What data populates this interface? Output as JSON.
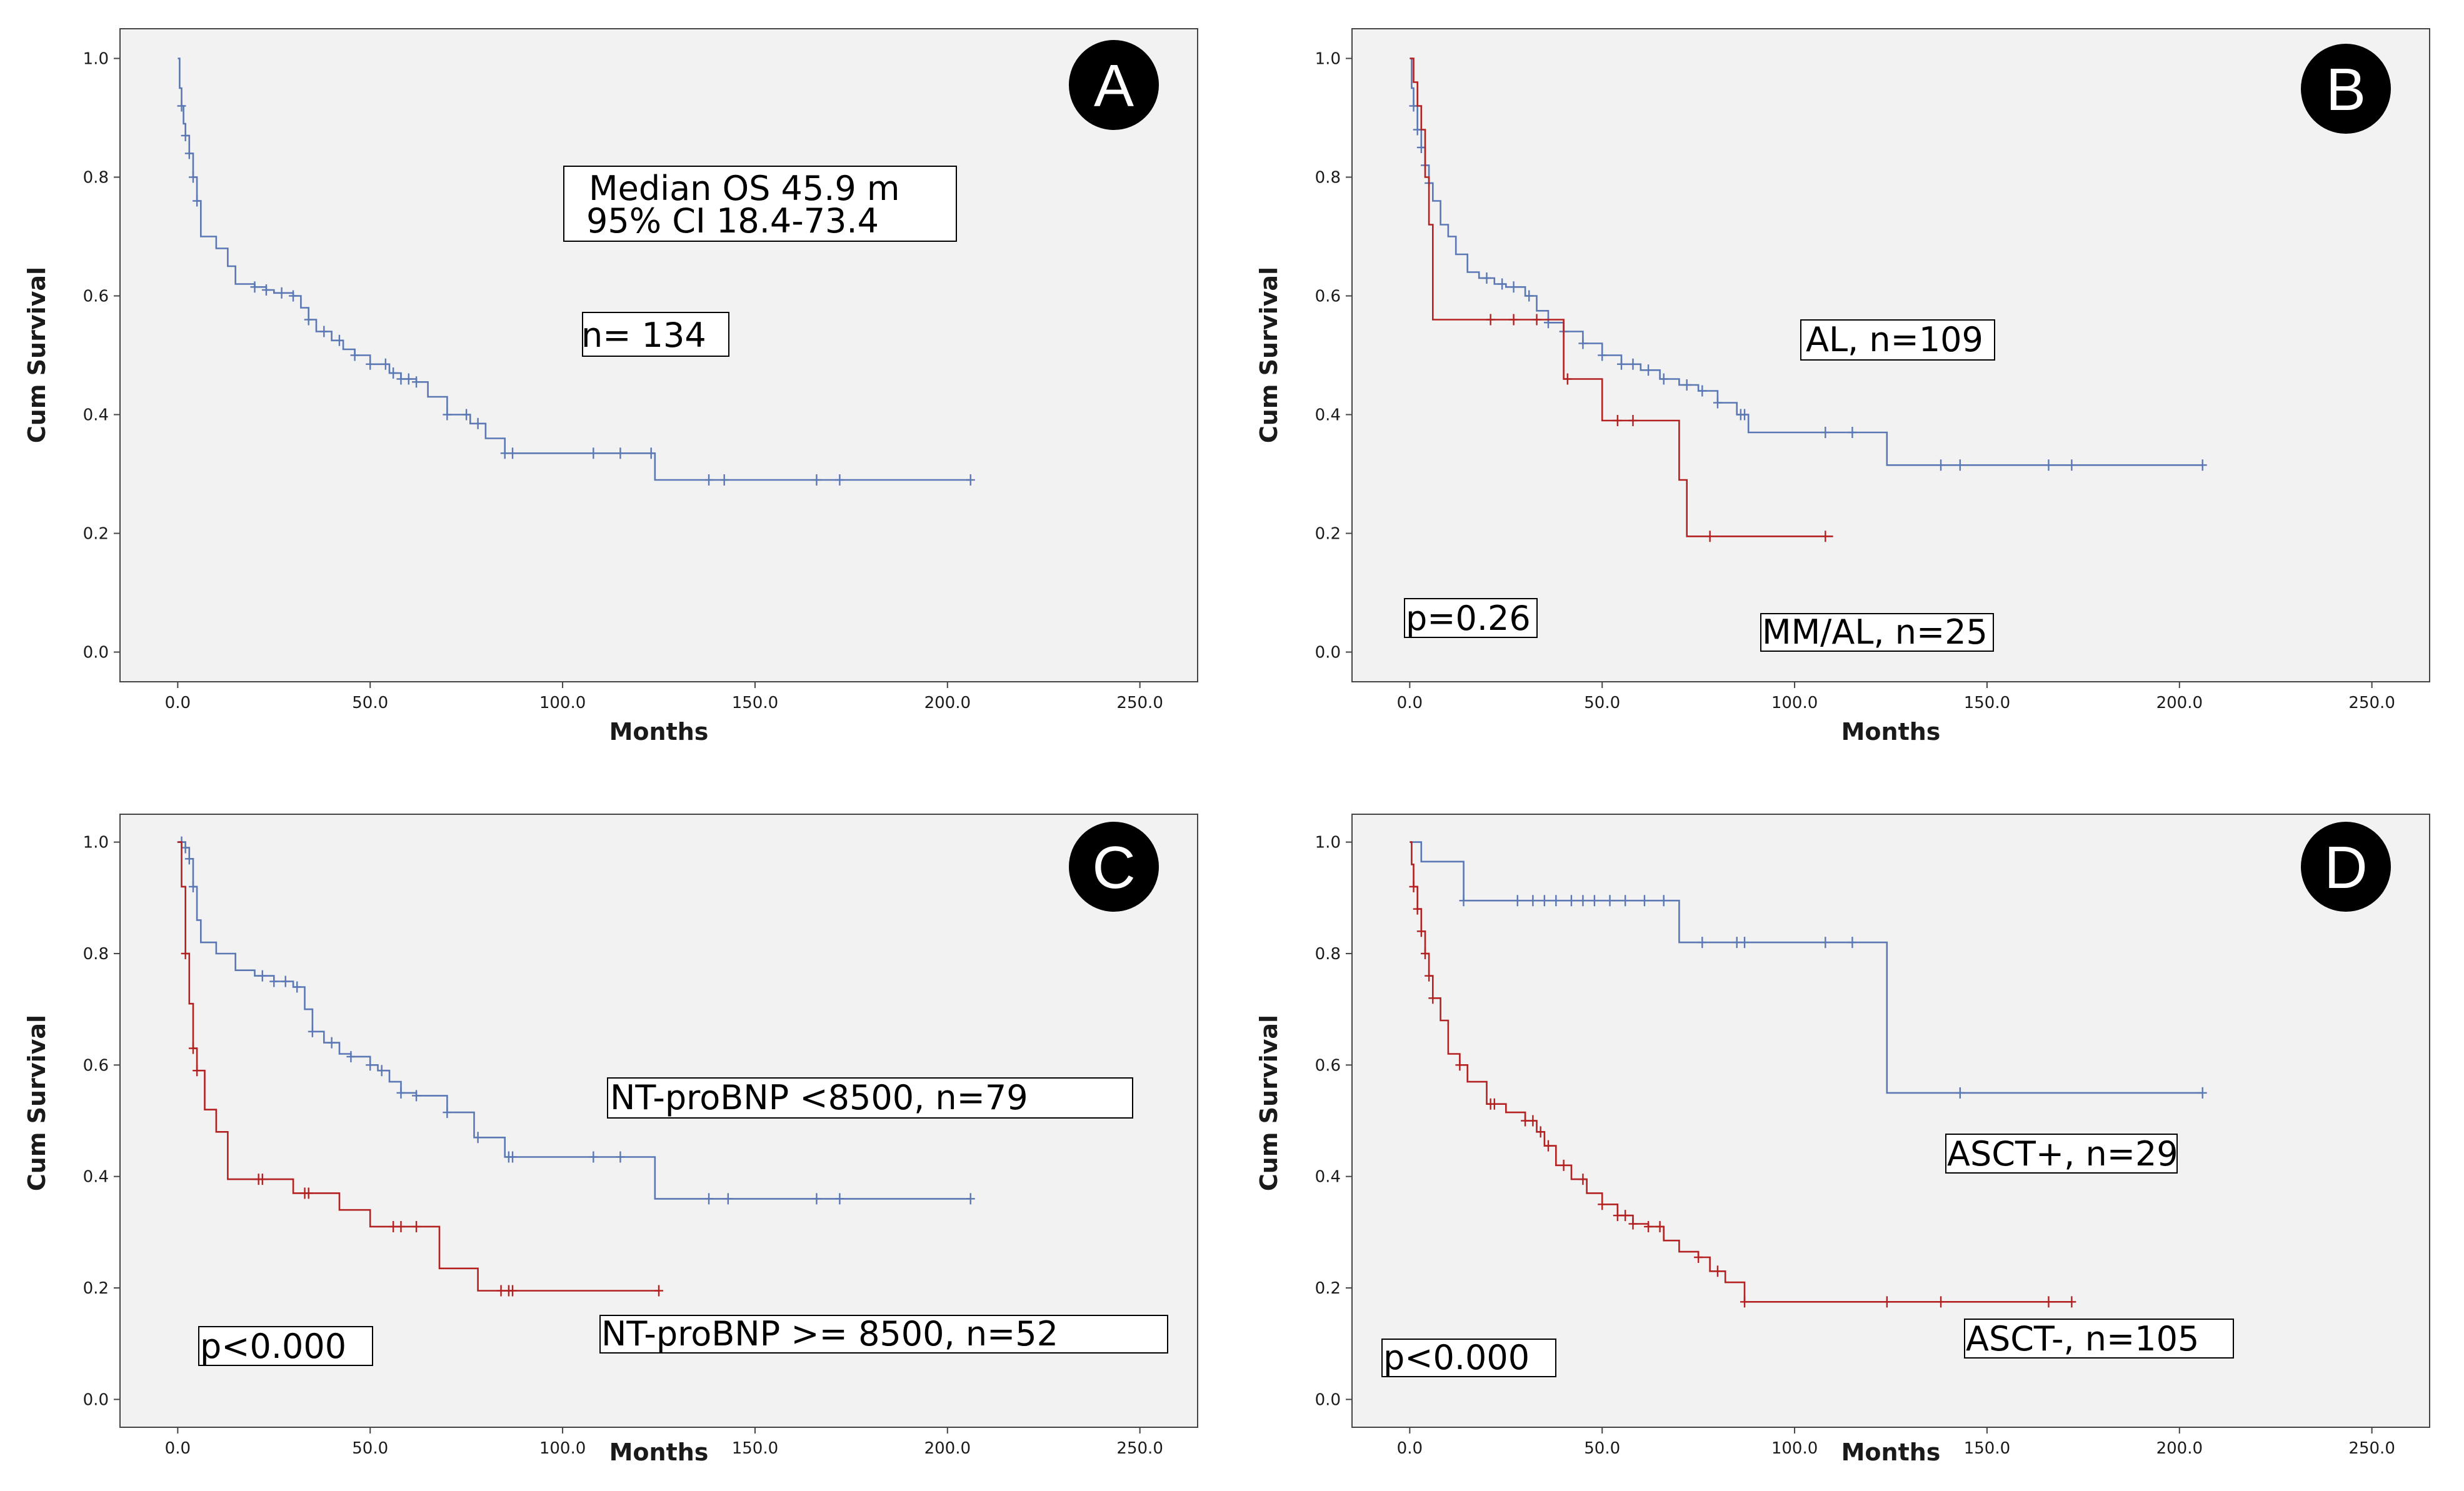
{
  "colors": {
    "blue": "#5b78b4",
    "red": "#b32121",
    "plot_bg": "#f2f2f2",
    "badge": "#000000"
  },
  "chart_data": [
    {
      "type": "line",
      "panel_label": "A",
      "xlabel": "Months",
      "ylabel": "Cum Survival",
      "xlim": [
        -15,
        265
      ],
      "ylim": [
        -0.05,
        1.05
      ],
      "x_ticks": [
        "0.0",
        "50.0",
        "100.0",
        "150.0",
        "200.0",
        "250.0"
      ],
      "y_ticks": [
        "0.0",
        "0.2",
        "0.4",
        "0.6",
        "0.8",
        "1.0"
      ],
      "annotations": [
        {
          "lines": [
            "Median OS 45.9 m",
            "95% CI 18.4-73.4"
          ]
        },
        {
          "lines": [
            "n= 134"
          ]
        }
      ],
      "series": [
        {
          "color": "blue",
          "x": [
            0,
            0.5,
            1,
            1.5,
            2,
            3,
            4,
            5,
            6,
            10,
            13,
            15,
            20,
            23,
            25,
            30,
            32,
            34,
            36,
            40,
            43,
            46,
            50,
            55,
            58,
            62,
            65,
            70,
            76,
            80,
            85,
            90,
            100,
            110,
            120,
            124,
            150,
            180,
            206
          ],
          "y": [
            1.0,
            0.95,
            0.92,
            0.89,
            0.87,
            0.84,
            0.8,
            0.76,
            0.7,
            0.68,
            0.65,
            0.62,
            0.615,
            0.61,
            0.605,
            0.6,
            0.58,
            0.56,
            0.54,
            0.525,
            0.51,
            0.5,
            0.485,
            0.47,
            0.46,
            0.455,
            0.43,
            0.4,
            0.385,
            0.36,
            0.335,
            0.335,
            0.335,
            0.335,
            0.335,
            0.29,
            0.29,
            0.29,
            0.29
          ],
          "censored": [
            1,
            2,
            3,
            4,
            5,
            20,
            23,
            27,
            30,
            34,
            38,
            42,
            46,
            50,
            54,
            56,
            58,
            60,
            62,
            70,
            75,
            78,
            85,
            87,
            108,
            115,
            123,
            138,
            142,
            166,
            172,
            206
          ]
        }
      ]
    },
    {
      "type": "line",
      "panel_label": "B",
      "xlabel": "Months",
      "ylabel": "Cum Survival",
      "xlim": [
        -15,
        265
      ],
      "ylim": [
        -0.05,
        1.05
      ],
      "x_ticks": [
        "0.0",
        "50.0",
        "100.0",
        "150.0",
        "200.0",
        "250.0"
      ],
      "y_ticks": [
        "0.0",
        "0.2",
        "0.4",
        "0.6",
        "0.8",
        "1.0"
      ],
      "annotations": [
        {
          "lines": [
            "AL, n=109"
          ]
        },
        {
          "lines": [
            "p=0.26"
          ]
        },
        {
          "lines": [
            "MM/AL, n=25"
          ]
        }
      ],
      "series": [
        {
          "color": "blue",
          "x": [
            0,
            0.5,
            1,
            2,
            3,
            4,
            5,
            6,
            8,
            10,
            12,
            15,
            18,
            22,
            25,
            30,
            33,
            36,
            40,
            45,
            50,
            55,
            60,
            65,
            70,
            75,
            80,
            85,
            88,
            124,
            206
          ],
          "y": [
            1.0,
            0.95,
            0.92,
            0.88,
            0.85,
            0.82,
            0.79,
            0.76,
            0.72,
            0.7,
            0.67,
            0.64,
            0.63,
            0.62,
            0.615,
            0.6,
            0.575,
            0.555,
            0.54,
            0.52,
            0.5,
            0.485,
            0.475,
            0.46,
            0.45,
            0.44,
            0.42,
            0.4,
            0.37,
            0.315,
            0.315
          ],
          "censored": [
            1,
            2,
            3,
            4,
            5,
            20,
            24,
            27,
            31,
            36,
            40,
            45,
            50,
            55,
            58,
            62,
            66,
            72,
            76,
            80,
            86,
            87,
            108,
            115,
            138,
            143,
            166,
            172,
            206
          ]
        },
        {
          "color": "red",
          "x": [
            0,
            1,
            2,
            3,
            4,
            5,
            6,
            35,
            40,
            50,
            70,
            72,
            110
          ],
          "y": [
            1.0,
            0.96,
            0.92,
            0.88,
            0.8,
            0.72,
            0.56,
            0.56,
            0.46,
            0.39,
            0.29,
            0.195,
            0.195
          ],
          "censored": [
            21,
            27,
            33,
            41,
            54,
            58,
            78,
            108
          ]
        }
      ]
    },
    {
      "type": "line",
      "panel_label": "C",
      "xlabel": "Months",
      "ylabel": "Cum Survival",
      "xlim": [
        -15,
        265
      ],
      "ylim": [
        -0.05,
        1.05
      ],
      "x_ticks": [
        "0.0",
        "50.0",
        "100.0",
        "150.0",
        "200.0",
        "250.0"
      ],
      "y_ticks": [
        "0.0",
        "0.2",
        "0.4",
        "0.6",
        "0.8",
        "1.0"
      ],
      "annotations": [
        {
          "lines": [
            "NT-proBNP <8500,  n=79"
          ]
        },
        {
          "lines": [
            "p<0.000"
          ]
        },
        {
          "lines": [
            "NT-proBNP >= 8500,  n=52"
          ]
        }
      ],
      "series": [
        {
          "color": "blue",
          "x": [
            0,
            2,
            3,
            4,
            5,
            6,
            10,
            15,
            20,
            25,
            30,
            33,
            35,
            38,
            42,
            45,
            50,
            52,
            55,
            58,
            62,
            70,
            77,
            85,
            124,
            206
          ],
          "y": [
            1.0,
            0.99,
            0.97,
            0.92,
            0.86,
            0.82,
            0.8,
            0.77,
            0.76,
            0.75,
            0.74,
            0.7,
            0.66,
            0.64,
            0.62,
            0.615,
            0.6,
            0.59,
            0.57,
            0.55,
            0.545,
            0.515,
            0.47,
            0.435,
            0.36,
            0.36
          ],
          "censored": [
            1,
            2,
            3,
            4,
            22,
            25,
            28,
            31,
            35,
            40,
            45,
            50,
            53,
            58,
            62,
            70,
            78,
            86,
            87,
            108,
            115,
            138,
            143,
            166,
            172,
            206
          ]
        },
        {
          "color": "red",
          "x": [
            0,
            1,
            2,
            3,
            4,
            5,
            7,
            10,
            13,
            20,
            30,
            42,
            50,
            68,
            78,
            125
          ],
          "y": [
            1.0,
            0.92,
            0.8,
            0.71,
            0.63,
            0.59,
            0.52,
            0.48,
            0.395,
            0.395,
            0.37,
            0.34,
            0.31,
            0.235,
            0.195,
            0.195
          ],
          "censored": [
            2,
            4,
            5,
            21,
            22,
            33,
            34,
            56,
            58,
            62,
            84,
            86,
            87,
            125
          ]
        }
      ]
    },
    {
      "type": "line",
      "panel_label": "D",
      "xlabel": "Months",
      "ylabel": "Cum Survival",
      "xlim": [
        -15,
        265
      ],
      "ylim": [
        -0.05,
        1.05
      ],
      "x_ticks": [
        "0.0",
        "50.0",
        "100.0",
        "150.0",
        "200.0",
        "250.0"
      ],
      "y_ticks": [
        "0.0",
        "0.2",
        "0.4",
        "0.6",
        "0.8",
        "1.0"
      ],
      "annotations": [
        {
          "lines": [
            "ASCT+, n=29"
          ]
        },
        {
          "lines": [
            "p<0.000"
          ]
        },
        {
          "lines": [
            "ASCT-, n=105"
          ]
        }
      ],
      "series": [
        {
          "color": "blue",
          "x": [
            0,
            3,
            14,
            70,
            124,
            206
          ],
          "y": [
            1.0,
            0.965,
            0.895,
            0.82,
            0.55,
            0.55
          ],
          "censored": [
            14,
            28,
            32,
            35,
            38,
            42,
            45,
            48,
            52,
            56,
            61,
            66,
            76,
            85,
            87,
            108,
            115,
            143,
            206
          ]
        },
        {
          "color": "red",
          "x": [
            0,
            0.5,
            1,
            2,
            3,
            4,
            5,
            6,
            8,
            10,
            13,
            15,
            20,
            25,
            30,
            33,
            35,
            38,
            42,
            46,
            50,
            54,
            58,
            62,
            66,
            70,
            75,
            78,
            82,
            87,
            120,
            172
          ],
          "y": [
            1.0,
            0.96,
            0.92,
            0.88,
            0.84,
            0.8,
            0.76,
            0.72,
            0.68,
            0.62,
            0.6,
            0.57,
            0.53,
            0.515,
            0.5,
            0.48,
            0.455,
            0.42,
            0.395,
            0.37,
            0.35,
            0.33,
            0.315,
            0.31,
            0.285,
            0.265,
            0.255,
            0.23,
            0.21,
            0.175,
            0.175,
            0.175
          ],
          "censored": [
            1,
            2,
            3,
            4,
            5,
            6,
            13,
            21,
            22,
            30,
            32,
            34,
            36,
            40,
            45,
            50,
            54,
            56,
            58,
            62,
            65,
            75,
            80,
            87,
            124,
            138,
            166,
            172
          ]
        }
      ]
    }
  ]
}
